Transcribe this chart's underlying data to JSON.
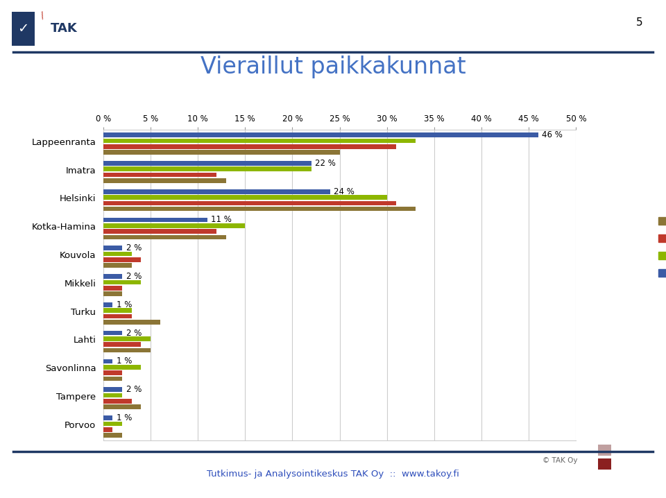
{
  "title": "Vieraillut paikkakunnat",
  "categories": [
    "Lappeenranta",
    "Imatra",
    "Helsinki",
    "Kotka-Hamina",
    "Kouvola",
    "Mikkeli",
    "Turku",
    "Lahti",
    "Savonlinna",
    "Tampere",
    "Porvoo"
  ],
  "series": {
    "2006": [
      25,
      13,
      33,
      13,
      3,
      2,
      6,
      5,
      2,
      4,
      2
    ],
    "2008": [
      31,
      12,
      31,
      12,
      4,
      2,
      3,
      4,
      2,
      3,
      1
    ],
    "2010": [
      33,
      22,
      30,
      15,
      3,
      4,
      3,
      5,
      4,
      2,
      2
    ],
    "2012": [
      46,
      22,
      24,
      11,
      2,
      2,
      1,
      2,
      1,
      2,
      1
    ]
  },
  "colors": {
    "2006": "#8B7536",
    "2008": "#C0392B",
    "2010": "#8DB600",
    "2012": "#3B5BA5"
  },
  "xlim": [
    0,
    50
  ],
  "xticks": [
    0,
    5,
    10,
    15,
    20,
    25,
    30,
    35,
    40,
    45,
    50
  ],
  "background_color": "#FFFFFF",
  "grid_color": "#CCCCCC",
  "title_color": "#4472C4",
  "title_fontsize": 24,
  "page_number": "5",
  "footer_text": "Tutkimus- ja Analysointikeskus TAK Oy  ::  www.takoy.fi",
  "footer_color": "#2E4EBB",
  "copyright_text": "© TAK Oy",
  "separator_color": "#1F3864",
  "ann_2012": [
    46,
    22,
    24,
    11,
    2,
    2,
    1,
    2,
    1,
    2,
    1
  ]
}
